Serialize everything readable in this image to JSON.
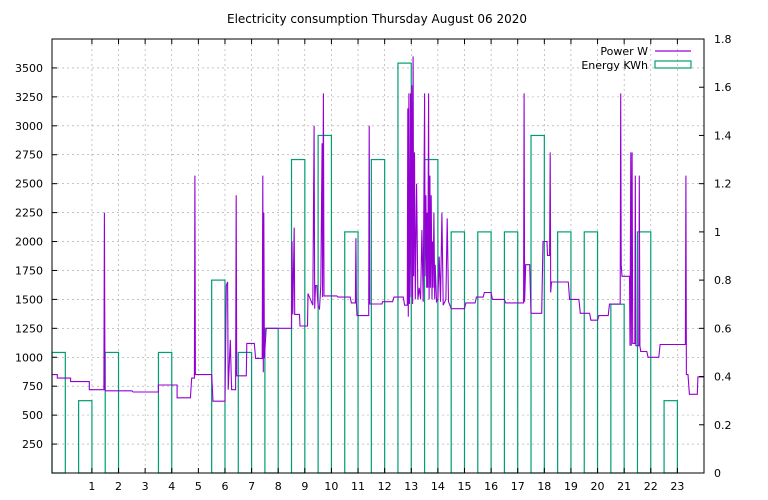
{
  "chart_data": {
    "type": "line",
    "title": "Electricity consumption Thursday August 06 2020",
    "xlim": [
      -0.5,
      24.0
    ],
    "ylim": [
      0,
      3750
    ],
    "y2lim": [
      0,
      1.8
    ],
    "x_ticks": [
      "1",
      "2",
      "3",
      "4",
      "5",
      "6",
      "7",
      "8",
      "9",
      "10",
      "11",
      "12",
      "13",
      "14",
      "15",
      "16",
      "17",
      "18",
      "19",
      "20",
      "21",
      "22",
      "23"
    ],
    "y_ticks": [
      "250",
      "500",
      "750",
      "1000",
      "1250",
      "1500",
      "1750",
      "2000",
      "2250",
      "2500",
      "2750",
      "3000",
      "3250",
      "3500"
    ],
    "y2_ticks": [
      "0",
      "0.2",
      "0.4",
      "0.6",
      "0.8",
      "1",
      "1.2",
      "1.4",
      "1.6",
      "1.8"
    ],
    "legend": [
      {
        "label": "Power W",
        "color": "#9400d3"
      },
      {
        "label": "Energy KWh",
        "color": "#009e73"
      }
    ],
    "energy": {
      "name": "Energy KWh",
      "color": "#009e73",
      "hours": [
        0,
        1,
        2,
        3,
        4,
        5,
        6,
        7,
        8,
        9,
        10,
        11,
        12,
        13,
        14,
        15,
        16,
        17,
        18,
        19,
        20,
        21,
        22,
        23
      ],
      "values": [
        0.5,
        0.3,
        0.5,
        0,
        0.5,
        0,
        0.8,
        0.5,
        0.6,
        1.3,
        1.4,
        1.0,
        1.3,
        1.7,
        1.3,
        1.0,
        1.0,
        1.0,
        1.4,
        1.0,
        1.0,
        0.7,
        1.0,
        0.3
      ]
    },
    "power": {
      "name": "Power W",
      "color": "#9400d3",
      "points": [
        [
          -0.5,
          850
        ],
        [
          -0.3,
          850
        ],
        [
          -0.3,
          820
        ],
        [
          0.2,
          820
        ],
        [
          0.2,
          790
        ],
        [
          0.9,
          790
        ],
        [
          0.9,
          720
        ],
        [
          1.4,
          720
        ],
        [
          1.45,
          720
        ],
        [
          1.47,
          2250
        ],
        [
          1.49,
          720
        ],
        [
          1.5,
          710
        ],
        [
          2.5,
          710
        ],
        [
          2.55,
          700
        ],
        [
          3.5,
          700
        ],
        [
          3.5,
          760
        ],
        [
          4.2,
          760
        ],
        [
          4.2,
          650
        ],
        [
          4.7,
          650
        ],
        [
          4.75,
          820
        ],
        [
          4.85,
          820
        ],
        [
          4.87,
          2570
        ],
        [
          4.89,
          850
        ],
        [
          5.5,
          850
        ],
        [
          5.55,
          620
        ],
        [
          6.0,
          620
        ],
        [
          6.05,
          1620
        ],
        [
          6.1,
          1650
        ],
        [
          6.12,
          720
        ],
        [
          6.2,
          1150
        ],
        [
          6.25,
          720
        ],
        [
          6.4,
          720
        ],
        [
          6.42,
          2400
        ],
        [
          6.44,
          840
        ],
        [
          6.8,
          840
        ],
        [
          6.82,
          1120
        ],
        [
          7.1,
          1120
        ],
        [
          7.15,
          990
        ],
        [
          7.4,
          990
        ],
        [
          7.42,
          2570
        ],
        [
          7.44,
          870
        ],
        [
          7.46,
          2250
        ],
        [
          7.48,
          990
        ],
        [
          7.55,
          1250
        ],
        [
          8.5,
          1250
        ],
        [
          8.52,
          2000
        ],
        [
          8.55,
          1370
        ],
        [
          8.6,
          2120
        ],
        [
          8.62,
          1370
        ],
        [
          8.8,
          1370
        ],
        [
          8.82,
          1270
        ],
        [
          9.1,
          1270
        ],
        [
          9.12,
          1550
        ],
        [
          9.3,
          1450
        ],
        [
          9.35,
          3000
        ],
        [
          9.37,
          1420
        ],
        [
          9.4,
          1620
        ],
        [
          9.45,
          1620
        ],
        [
          9.5,
          1440
        ],
        [
          9.55,
          1420
        ],
        [
          9.6,
          1620
        ],
        [
          9.65,
          2850
        ],
        [
          9.67,
          1520
        ],
        [
          9.7,
          3280
        ],
        [
          9.72,
          1530
        ],
        [
          10.2,
          1530
        ],
        [
          10.25,
          1520
        ],
        [
          10.7,
          1520
        ],
        [
          10.75,
          1470
        ],
        [
          10.9,
          1470
        ],
        [
          10.92,
          2030
        ],
        [
          10.94,
          1470
        ],
        [
          10.96,
          1360
        ],
        [
          11.4,
          1360
        ],
        [
          11.42,
          3000
        ],
        [
          11.44,
          1460
        ],
        [
          11.9,
          1460
        ],
        [
          11.92,
          1480
        ],
        [
          12.3,
          1480
        ],
        [
          12.35,
          1520
        ],
        [
          12.7,
          1520
        ],
        [
          12.75,
          1450
        ],
        [
          12.85,
          1450
        ],
        [
          12.87,
          3150
        ],
        [
          12.89,
          1350
        ],
        [
          12.91,
          3280
        ],
        [
          12.93,
          1460
        ],
        [
          12.95,
          1890
        ],
        [
          12.97,
          3280
        ],
        [
          12.99,
          1520
        ],
        [
          13.02,
          3350
        ],
        [
          13.05,
          1460
        ],
        [
          13.07,
          3600
        ],
        [
          13.09,
          1700
        ],
        [
          13.12,
          2770
        ],
        [
          13.15,
          1500
        ],
        [
          13.2,
          2500
        ],
        [
          13.25,
          1500
        ],
        [
          13.3,
          1600
        ],
        [
          13.35,
          1500
        ],
        [
          13.4,
          2100
        ],
        [
          13.45,
          1480
        ],
        [
          13.5,
          3280
        ],
        [
          13.52,
          1700
        ],
        [
          13.55,
          2400
        ],
        [
          13.58,
          1600
        ],
        [
          13.6,
          2250
        ],
        [
          13.62,
          1600
        ],
        [
          13.65,
          3280
        ],
        [
          13.67,
          1500
        ],
        [
          13.7,
          2570
        ],
        [
          13.72,
          1600
        ],
        [
          13.75,
          2400
        ],
        [
          13.78,
          1500
        ],
        [
          13.8,
          2000
        ],
        [
          13.82,
          1600
        ],
        [
          13.85,
          2250
        ],
        [
          13.88,
          1500
        ],
        [
          13.9,
          1800
        ],
        [
          13.95,
          1480
        ],
        [
          14.0,
          1500
        ],
        [
          14.05,
          1870
        ],
        [
          14.1,
          1480
        ],
        [
          14.15,
          2250
        ],
        [
          14.2,
          1450
        ],
        [
          14.3,
          1500
        ],
        [
          14.35,
          2200
        ],
        [
          14.4,
          1480
        ],
        [
          14.5,
          1420
        ],
        [
          15.0,
          1420
        ],
        [
          15.05,
          1470
        ],
        [
          15.4,
          1470
        ],
        [
          15.45,
          1520
        ],
        [
          15.7,
          1520
        ],
        [
          15.75,
          1560
        ],
        [
          16.0,
          1560
        ],
        [
          16.05,
          1500
        ],
        [
          16.5,
          1500
        ],
        [
          16.55,
          1470
        ],
        [
          17.2,
          1470
        ],
        [
          17.22,
          1470
        ],
        [
          17.24,
          3280
        ],
        [
          17.26,
          1480
        ],
        [
          17.3,
          1800
        ],
        [
          17.45,
          1800
        ],
        [
          17.5,
          1380
        ],
        [
          17.9,
          1380
        ],
        [
          17.95,
          2000
        ],
        [
          18.1,
          2000
        ],
        [
          18.12,
          1880
        ],
        [
          18.2,
          1880
        ],
        [
          18.22,
          2770
        ],
        [
          18.24,
          1560
        ],
        [
          18.27,
          1650
        ],
        [
          18.9,
          1650
        ],
        [
          18.95,
          1500
        ],
        [
          19.3,
          1500
        ],
        [
          19.35,
          1380
        ],
        [
          19.7,
          1380
        ],
        [
          19.75,
          1320
        ],
        [
          20.0,
          1320
        ],
        [
          20.05,
          1360
        ],
        [
          20.4,
          1360
        ],
        [
          20.45,
          1460
        ],
        [
          20.85,
          1460
        ],
        [
          20.87,
          3280
        ],
        [
          20.89,
          1800
        ],
        [
          20.92,
          1700
        ],
        [
          21.2,
          1700
        ],
        [
          21.22,
          1100
        ],
        [
          21.25,
          2770
        ],
        [
          21.27,
          1100
        ],
        [
          21.3,
          2770
        ],
        [
          21.32,
          1120
        ],
        [
          21.4,
          1120
        ],
        [
          21.42,
          2570
        ],
        [
          21.44,
          1100
        ],
        [
          21.55,
          1100
        ],
        [
          21.57,
          2570
        ],
        [
          21.59,
          1100
        ],
        [
          21.62,
          1050
        ],
        [
          21.85,
          1050
        ],
        [
          21.9,
          1000
        ],
        [
          22.3,
          1000
        ],
        [
          22.35,
          1110
        ],
        [
          23.3,
          1110
        ],
        [
          23.32,
          2570
        ],
        [
          23.34,
          850
        ],
        [
          23.4,
          850
        ],
        [
          23.45,
          680
        ],
        [
          23.75,
          680
        ],
        [
          23.77,
          830
        ],
        [
          24.0,
          830
        ]
      ]
    }
  }
}
